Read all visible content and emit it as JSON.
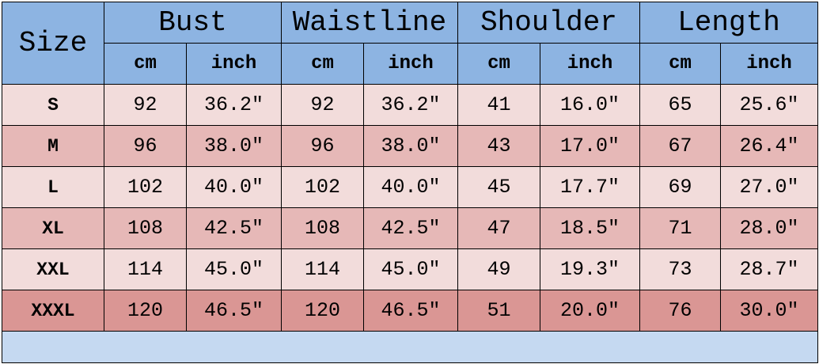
{
  "header": {
    "size": "Size",
    "groups": [
      "Bust",
      "Waistline",
      "Shoulder",
      "Length"
    ],
    "units": [
      "cm",
      "inch",
      "cm",
      "inch",
      "cm",
      "inch",
      "cm",
      "inch"
    ]
  },
  "table": {
    "rows": [
      [
        "S",
        "92",
        "36.2″",
        "92",
        "36.2″",
        "41",
        "16.0″",
        "65",
        "25.6″"
      ],
      [
        "M",
        "96",
        "38.0″",
        "96",
        "38.0″",
        "43",
        "17.0″",
        "67",
        "26.4″"
      ],
      [
        "L",
        "102",
        "40.0″",
        "102",
        "40.0″",
        "45",
        "17.7″",
        "69",
        "27.0″"
      ],
      [
        "XL",
        "108",
        "42.5″",
        "108",
        "42.5″",
        "47",
        "18.5″",
        "71",
        "28.0″"
      ],
      [
        "XXL",
        "114",
        "45.0″",
        "114",
        "45.0″",
        "49",
        "19.3″",
        "73",
        "28.7″"
      ],
      [
        "XXXL",
        "120",
        "46.5″",
        "120",
        "46.5″",
        "51",
        "20.0″",
        "76",
        "30.0″"
      ]
    ]
  }
}
